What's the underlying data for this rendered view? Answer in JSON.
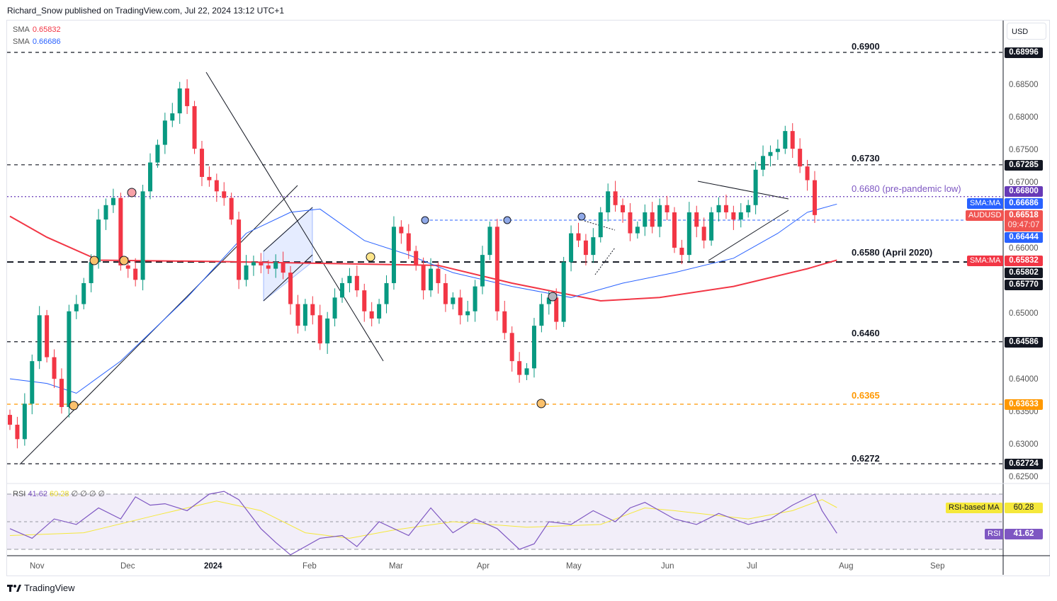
{
  "header": {
    "published": "Richard_Snow published on TradingView.com, Jul 22, 2024 13:12 UTC+1"
  },
  "legend": [
    {
      "label": "SMA",
      "value": "0.65832",
      "color": "#f23645"
    },
    {
      "label": "SMA",
      "value": "0.66686",
      "color": "#2962ff"
    }
  ],
  "currency": "USD",
  "footer": {
    "brand": "TradingView"
  },
  "chart_data": {
    "type": "candlestick",
    "symbol": "AUDUSD",
    "x_labels": [
      "Nov",
      "Dec",
      "2024",
      "Feb",
      "Mar",
      "Apr",
      "May",
      "Jun",
      "Jul",
      "Aug",
      "Sep"
    ],
    "y_ticks": [
      "0.68500",
      "0.68000",
      "0.67500",
      "0.67000",
      "0.66000",
      "0.65000",
      "0.64000",
      "0.63500",
      "0.63000",
      "0.62500"
    ],
    "ylim": [
      0.6245,
      0.6925
    ],
    "closes": [
      0.6332,
      0.631,
      0.6364,
      0.6429,
      0.6499,
      0.6435,
      0.6402,
      0.6359,
      0.6505,
      0.6516,
      0.6548,
      0.658,
      0.6645,
      0.6667,
      0.6678,
      0.6575,
      0.657,
      0.6553,
      0.6688,
      0.6732,
      0.6759,
      0.6796,
      0.6807,
      0.6845,
      0.6818,
      0.6753,
      0.671,
      0.6705,
      0.6688,
      0.6678,
      0.6645,
      0.6553,
      0.6575,
      0.658,
      0.6575,
      0.657,
      0.658,
      0.6564,
      0.6516,
      0.6483,
      0.6516,
      0.6499,
      0.6456,
      0.6494,
      0.6526,
      0.6548,
      0.6559,
      0.6537,
      0.6505,
      0.6494,
      0.6516,
      0.6548,
      0.6634,
      0.6624,
      0.6597,
      0.6575,
      0.6537,
      0.657,
      0.6548,
      0.6516,
      0.6526,
      0.6499,
      0.6505,
      0.6543,
      0.6591,
      0.6634,
      0.6505,
      0.6472,
      0.6429,
      0.6408,
      0.6418,
      0.6483,
      0.6516,
      0.6526,
      0.6489,
      0.658,
      0.6624,
      0.6613,
      0.6591,
      0.6618,
      0.6656,
      0.6688,
      0.6667,
      0.6656,
      0.6624,
      0.6634,
      0.6656,
      0.6634,
      0.6667,
      0.6656,
      0.6602,
      0.6591,
      0.6656,
      0.6634,
      0.6613,
      0.6656,
      0.6667,
      0.6656,
      0.6645,
      0.6656,
      0.6667,
      0.6721,
      0.6742,
      0.6748,
      0.6753,
      0.678,
      0.6753,
      0.6726,
      0.6705,
      0.66518
    ],
    "sma_200": {
      "label": "SMA:MA",
      "value": "0.65832",
      "color": "#f23645",
      "points": [
        [
          0,
          0.665
        ],
        [
          5,
          0.6618
        ],
        [
          12,
          0.6583
        ],
        [
          28,
          0.6581
        ],
        [
          58,
          0.6575
        ],
        [
          68,
          0.6548
        ],
        [
          80,
          0.6521
        ],
        [
          88,
          0.6526
        ],
        [
          98,
          0.6543
        ],
        [
          108,
          0.657
        ],
        [
          112,
          0.65832
        ]
      ]
    },
    "sma_50": {
      "label": "SMA:MA",
      "value": "0.66686",
      "color": "#2962ff",
      "points": [
        [
          0,
          0.6402
        ],
        [
          5,
          0.6395
        ],
        [
          9,
          0.638
        ],
        [
          15,
          0.6429
        ],
        [
          24,
          0.6526
        ],
        [
          32,
          0.6624
        ],
        [
          38,
          0.6656
        ],
        [
          42,
          0.6661
        ],
        [
          48,
          0.6613
        ],
        [
          54,
          0.6591
        ],
        [
          60,
          0.6564
        ],
        [
          68,
          0.6543
        ],
        [
          76,
          0.6526
        ],
        [
          83,
          0.6548
        ],
        [
          90,
          0.6564
        ],
        [
          98,
          0.6586
        ],
        [
          104,
          0.6624
        ],
        [
          108,
          0.6656
        ],
        [
          112,
          0.66686
        ]
      ]
    },
    "levels": [
      {
        "price": 0.69,
        "label": "0.6900",
        "tag": "0.68996",
        "color": "#131722",
        "style": "dashed"
      },
      {
        "price": 0.67285,
        "label": "0.6730",
        "tag": "0.67285",
        "color": "#131722",
        "style": "dashed"
      },
      {
        "price": 0.668,
        "label": "0.6680 (pre-pandemic low)",
        "tag": "0.66800",
        "color": "#673ab7",
        "style": "dotted"
      },
      {
        "price": 0.65802,
        "label": "0.6580 (April 2020)",
        "tag": "0.65802",
        "color": "#131722",
        "style": "thick-dashed"
      },
      {
        "price": 0.64586,
        "label": "0.6460",
        "tag": "0.64586",
        "color": "#131722",
        "style": "dashed"
      },
      {
        "price": 0.63633,
        "label": "0.6365",
        "tag": "0.63633",
        "color": "#ff9800",
        "style": "dashed"
      },
      {
        "price": 0.62724,
        "label": "0.6272",
        "tag": "0.62724",
        "color": "#131722",
        "style": "dashed"
      }
    ],
    "extra_tags": [
      {
        "value": "0.66444",
        "color": "#2962ff"
      },
      {
        "value": "0.65770",
        "color": "#131722"
      }
    ],
    "last_price": {
      "label": "AUDUSD",
      "value": "0.66518",
      "countdown": "09:47:07",
      "color": "#f05350"
    },
    "rsi": {
      "title": "RSI",
      "value": "41.62",
      "ma_value": "60.28",
      "ma_label": "RSI-based MA",
      "extra": "∅ ∅ ∅ ∅",
      "color": "#7e57c2",
      "ma_color": "#f5e83b",
      "bands": [
        70,
        50,
        30
      ],
      "points": [
        [
          0,
          45
        ],
        [
          3,
          38
        ],
        [
          6,
          52
        ],
        [
          9,
          48
        ],
        [
          12,
          60
        ],
        [
          15,
          52
        ],
        [
          17,
          68
        ],
        [
          19,
          62
        ],
        [
          21,
          63
        ],
        [
          24,
          58
        ],
        [
          27,
          70
        ],
        [
          29,
          72
        ],
        [
          31,
          66
        ],
        [
          34,
          45
        ],
        [
          36,
          35
        ],
        [
          38,
          26
        ],
        [
          40,
          32
        ],
        [
          42,
          38
        ],
        [
          45,
          40
        ],
        [
          47,
          32
        ],
        [
          50,
          50
        ],
        [
          54,
          40
        ],
        [
          57,
          60
        ],
        [
          60,
          42
        ],
        [
          63,
          52
        ],
        [
          66,
          45
        ],
        [
          69,
          30
        ],
        [
          71,
          34
        ],
        [
          73,
          50
        ],
        [
          76,
          48
        ],
        [
          79,
          58
        ],
        [
          82,
          50
        ],
        [
          84,
          60
        ],
        [
          86,
          64
        ],
        [
          88,
          58
        ],
        [
          90,
          52
        ],
        [
          93,
          48
        ],
        [
          96,
          56
        ],
        [
          100,
          48
        ],
        [
          103,
          52
        ],
        [
          106,
          62
        ],
        [
          109,
          70
        ],
        [
          110,
          58
        ],
        [
          112,
          41.62
        ]
      ],
      "ma_points": [
        [
          0,
          40
        ],
        [
          10,
          42
        ],
        [
          20,
          55
        ],
        [
          28,
          65
        ],
        [
          34,
          58
        ],
        [
          40,
          42
        ],
        [
          46,
          38
        ],
        [
          52,
          44
        ],
        [
          60,
          50
        ],
        [
          70,
          46
        ],
        [
          80,
          48
        ],
        [
          86,
          60
        ],
        [
          90,
          58
        ],
        [
          100,
          52
        ],
        [
          106,
          58
        ],
        [
          110,
          66
        ],
        [
          112,
          60.28
        ]
      ]
    }
  }
}
